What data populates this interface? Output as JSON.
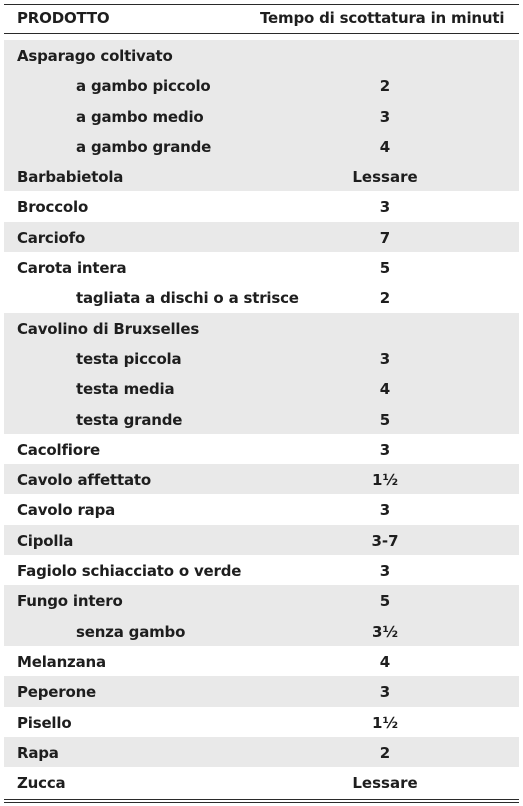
{
  "headers": {
    "product": "PRODOTTO",
    "time": "Tempo di scottatura in minuti"
  },
  "rows": [
    {
      "name": "Asparago coltivato",
      "value": "",
      "sub": false,
      "shade": true
    },
    {
      "name": "a gambo piccolo",
      "value": "2",
      "sub": true,
      "shade": true
    },
    {
      "name": "a gambo medio",
      "value": "3",
      "sub": true,
      "shade": true
    },
    {
      "name": "a gambo grande",
      "value": "4",
      "sub": true,
      "shade": true
    },
    {
      "name": "Barbabietola",
      "value": "Lessare",
      "sub": false,
      "shade": true
    },
    {
      "name": "Broccolo",
      "value": "3",
      "sub": false,
      "shade": false
    },
    {
      "name": "Carciofo",
      "value": "7",
      "sub": false,
      "shade": true
    },
    {
      "name": "Carota intera",
      "value": "5",
      "sub": false,
      "shade": false
    },
    {
      "name": "tagliata a dischi o a strisce",
      "value": "2",
      "sub": true,
      "shade": false
    },
    {
      "name": "Cavolino di Bruxselles",
      "value": "",
      "sub": false,
      "shade": true
    },
    {
      "name": "testa piccola",
      "value": "3",
      "sub": true,
      "shade": true
    },
    {
      "name": "testa media",
      "value": "4",
      "sub": true,
      "shade": true
    },
    {
      "name": "testa grande",
      "value": "5",
      "sub": true,
      "shade": true
    },
    {
      "name": "Cacolfiore",
      "value": "3",
      "sub": false,
      "shade": false
    },
    {
      "name": "Cavolo affettato",
      "value": "1½",
      "sub": false,
      "shade": true
    },
    {
      "name": "Cavolo rapa",
      "value": "3",
      "sub": false,
      "shade": false
    },
    {
      "name": "Cipolla",
      "value": "3-7",
      "sub": false,
      "shade": true
    },
    {
      "name": "Fagiolo schiacciato o verde",
      "value": "3",
      "sub": false,
      "shade": false
    },
    {
      "name": "Fungo intero",
      "value": "5",
      "sub": false,
      "shade": true
    },
    {
      "name": "senza gambo",
      "value": "3½",
      "sub": true,
      "shade": true
    },
    {
      "name": "Melanzana",
      "value": "4",
      "sub": false,
      "shade": false
    },
    {
      "name": "Peperone",
      "value": "3",
      "sub": false,
      "shade": true
    },
    {
      "name": "Pisello",
      "value": "1½",
      "sub": false,
      "shade": false
    },
    {
      "name": "Rapa",
      "value": "2",
      "sub": false,
      "shade": true
    },
    {
      "name": "Zucca",
      "value": "Lessare",
      "sub": false,
      "shade": false
    }
  ]
}
